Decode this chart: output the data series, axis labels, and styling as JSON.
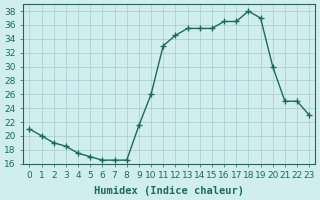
{
  "x": [
    0,
    1,
    2,
    3,
    4,
    5,
    6,
    7,
    8,
    9,
    10,
    11,
    12,
    13,
    14,
    15,
    16,
    17,
    18,
    19,
    20,
    21,
    22,
    23
  ],
  "y": [
    21,
    20,
    19,
    18.5,
    17.5,
    17,
    16.5,
    16.5,
    16.5,
    21.5,
    26,
    33,
    34.5,
    35.5,
    35.5,
    35.5,
    36.5,
    36.5,
    38,
    37,
    30,
    25,
    25,
    23
  ],
  "line_color": "#1a6b5a",
  "marker_color": "#1a6b5a",
  "bg_color": "#d0eeee",
  "grid_color": "#aacccc",
  "xlabel": "Humidex (Indice chaleur)",
  "xlim": [
    -0.5,
    23.5
  ],
  "ylim": [
    16,
    39
  ],
  "yticks": [
    16,
    18,
    20,
    22,
    24,
    26,
    28,
    30,
    32,
    34,
    36,
    38
  ],
  "xticks": [
    0,
    1,
    2,
    3,
    4,
    5,
    6,
    7,
    8,
    9,
    10,
    11,
    12,
    13,
    14,
    15,
    16,
    17,
    18,
    19,
    20,
    21,
    22,
    23
  ],
  "xtick_labels": [
    "0",
    "1",
    "2",
    "3",
    "4",
    "5",
    "6",
    "7",
    "8",
    "9",
    "10",
    "11",
    "12",
    "13",
    "14",
    "15",
    "16",
    "17",
    "18",
    "19",
    "20",
    "21",
    "22",
    "23"
  ],
  "label_fontsize": 7.5,
  "tick_fontsize": 6.5
}
